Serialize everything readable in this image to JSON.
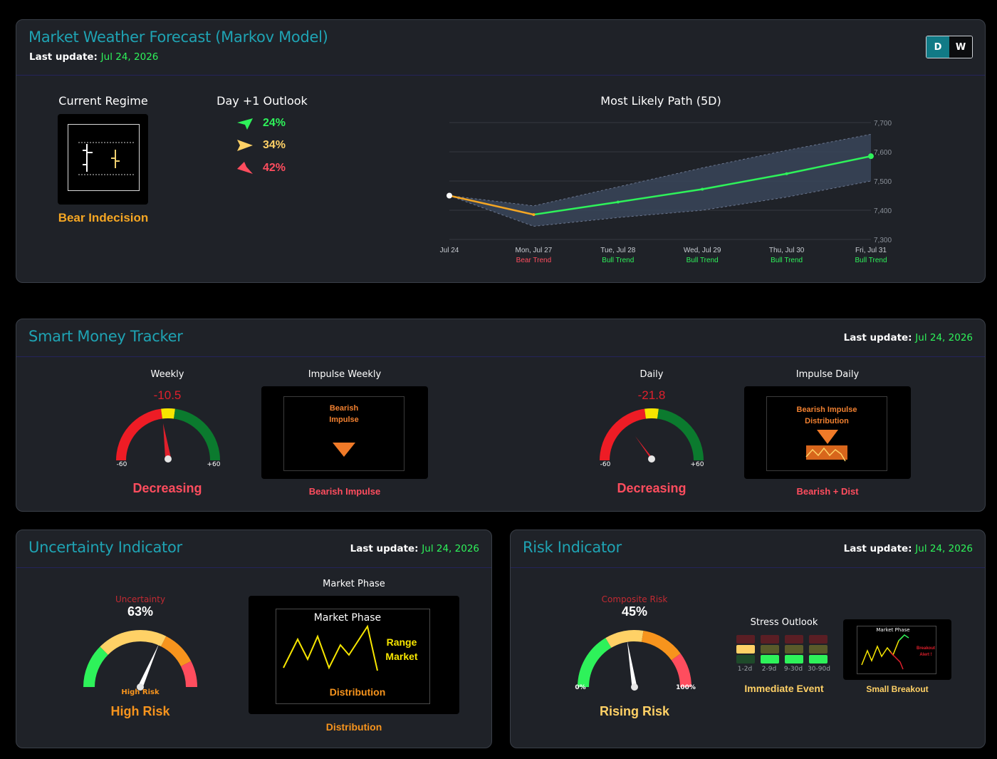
{
  "forecast": {
    "title": "Market Weather Forecast (Markov Model)",
    "update_label": "Last update:",
    "update_date": "Jul 24, 2026",
    "toggle": [
      "D",
      "W"
    ],
    "regime_title": "Current Regime",
    "regime_value": "Bear Indecision",
    "outlook_title": "Day +1 Outlook",
    "outlook": [
      {
        "pct": "24%",
        "direction": "up",
        "color": "#2ef25a"
      },
      {
        "pct": "34%",
        "direction": "flat",
        "color": "#ffd166"
      },
      {
        "pct": "42%",
        "direction": "down",
        "color": "#ff4d5e"
      }
    ],
    "path_title": "Most Likely Path (5D)"
  },
  "chart_data": {
    "type": "line",
    "title": "Most Likely Path (5D)",
    "x": [
      "Jul 24",
      "Mon, Jul 27",
      "Tue, Jul 28",
      "Wed, Jul 29",
      "Thu, Jul 30",
      "Fri, Jul 31"
    ],
    "regimes": [
      "",
      "Bear Trend",
      "Bull Trend",
      "Bull Trend",
      "Bull Trend",
      "Bull Trend"
    ],
    "regime_colors": {
      "Bear Trend": "#ff4d5e",
      "Bull Trend": "#2ef25a"
    },
    "series": [
      {
        "values": [
          7450,
          7385,
          7428,
          7472,
          7525,
          7585
        ]
      },
      {
        "values": [
          7450,
          7415,
          7480,
          7545,
          7605,
          7660
        ]
      },
      {
        "values": [
          7450,
          7345,
          7375,
          7400,
          7445,
          7500
        ]
      }
    ],
    "y_ticks": [
      "7,300",
      "7,400",
      "7,500",
      "7,600",
      "7,700"
    ],
    "ylim": [
      7300,
      7700
    ],
    "grid": true
  },
  "smart_money": {
    "title": "Smart Money Tracker",
    "update_label": "Last update:",
    "update_date": "Jul 24, 2026",
    "weekly": {
      "label": "Weekly",
      "value": "-10.5",
      "min": "-60",
      "max": "+60",
      "status": "Decreasing"
    },
    "impulse_weekly": {
      "label": "Impulse Weekly",
      "inner_line1": "Bearish",
      "inner_line2": "Impulse",
      "status": "Bearish Impulse"
    },
    "daily": {
      "label": "Daily",
      "value": "-21.8",
      "min": "-60",
      "max": "+60",
      "status": "Decreasing"
    },
    "impulse_daily": {
      "label": "Impulse Daily",
      "inner_line1": "Bearish Impulse",
      "inner_line2": "Distribution",
      "status": "Bearish + Dist"
    }
  },
  "uncertainty": {
    "title": "Uncertainty Indicator",
    "update_label": "Last update:",
    "update_date": "Jul 24, 2026",
    "gauge_label": "Uncertainty",
    "value": "63%",
    "level": 0.63,
    "zone_label": "High Risk",
    "status": "High Risk",
    "phase_label": "Market Phase",
    "phase_inner_title": "Market Phase",
    "phase_inner_range1": "Range",
    "phase_inner_range2": "Market",
    "phase_inner_bottom": "Distribution",
    "phase_status": "Distribution"
  },
  "risk": {
    "title": "Risk Indicator",
    "update_label": "Last update:",
    "update_date": "Jul 24, 2026",
    "gauge_label": "Composite Risk",
    "value": "45%",
    "level": 0.45,
    "min": "0%",
    "max": "100%",
    "status": "Rising Risk",
    "stress_title": "Stress Outlook",
    "stress_cols": [
      "1-2d",
      "2-9d",
      "9-30d",
      "30-90d"
    ],
    "stress_status": "Immediate Event",
    "breakout_inner_title": "Market Phase",
    "breakout_inner_line1": "Breakout",
    "breakout_inner_line2": "Alert !",
    "breakout_status": "Small Breakout"
  }
}
